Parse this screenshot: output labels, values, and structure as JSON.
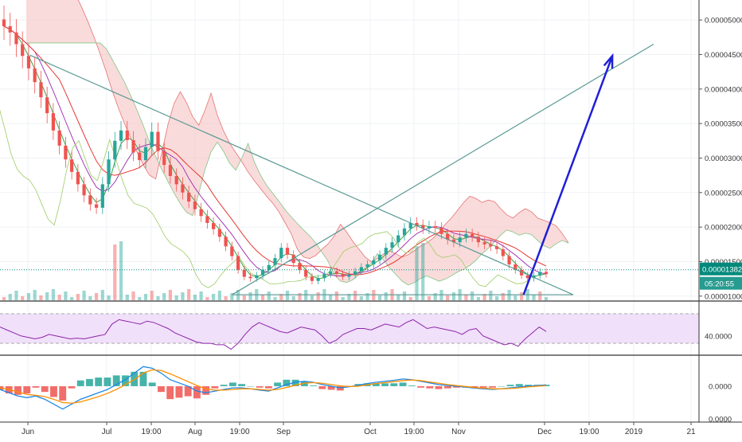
{
  "chart_data": [
    {
      "id": "price",
      "type": "line",
      "y_axis_ticks": [
        "0.00005000",
        "0.00004500",
        "0.00004000",
        "0.00003500",
        "0.00003000",
        "0.00002500",
        "0.00002000",
        "0.00001500",
        "0.00001000"
      ],
      "y_tick_values": [
        5e-05,
        4.5e-05,
        4e-05,
        3.5e-05,
        3e-05,
        2.5e-05,
        2e-05,
        1.5e-05,
        1e-05
      ],
      "ylim": [
        9.4e-06,
        5.29e-05
      ],
      "current_price_label": "0.00001382",
      "current_price": 1.382e-05,
      "countdown_label": "05:20:55",
      "x_axis_ticks": [
        "Jun",
        "Jul",
        "19:00",
        "Aug",
        "19:00",
        "Sep",
        "Oct",
        "19:00",
        "Nov",
        "Dec",
        "19:00",
        "2019",
        "21"
      ],
      "series": [
        {
          "values": [
            4.91e-05,
            4.82e-05,
            4.65e-05,
            4.48e-05,
            4.3e-05,
            4.1e-05,
            3.88e-05,
            3.65e-05,
            3.4e-05,
            3.18e-05,
            2.98e-05,
            2.8e-05,
            2.62e-05,
            2.46e-05,
            2.33e-05,
            2.28e-05,
            2.62e-05,
            2.98e-05,
            3.25e-05,
            3.4e-05,
            3.26e-05,
            3.08e-05,
            2.97e-05,
            3.16e-05,
            3.38e-05,
            3.1e-05,
            2.9e-05,
            2.74e-05,
            2.62e-05,
            2.5e-05,
            2.37e-05,
            2.26e-05,
            2.16e-05,
            2.06e-05,
            1.97e-05,
            1.86e-05,
            1.72e-05,
            1.58e-05,
            1.38e-05,
            1.28e-05,
            1.26e-05,
            1.3e-05,
            1.38e-05,
            1.45e-05,
            1.55e-05,
            1.7e-05,
            1.6e-05,
            1.48e-05,
            1.38e-05,
            1.28e-05,
            1.22e-05,
            1.26e-05,
            1.32e-05,
            1.36e-05,
            1.32e-05,
            1.28e-05,
            1.31e-05,
            1.36e-05,
            1.42e-05,
            1.46e-05,
            1.52e-05,
            1.6e-05,
            1.7e-05,
            1.78e-05,
            1.88e-05,
            1.98e-05,
            2.06e-05,
            2.03e-05,
            1.98e-05,
            2.01e-05,
            1.99e-05,
            1.9e-05,
            1.82e-05,
            1.78e-05,
            1.85e-05,
            1.9e-05,
            1.86e-05,
            1.78e-05,
            1.75e-05,
            1.72e-05,
            1.68e-05,
            1.58e-05,
            1.46e-05,
            1.38e-05,
            1.3e-05,
            1.26e-05,
            1.3e-05,
            1.35e-05,
            1.32e-05
          ]
        }
      ],
      "trend_lines": [
        {
          "from": [
            0.043,
            4.49e-05
          ],
          "to": [
            0.82,
            1.02e-05
          ]
        },
        {
          "from": [
            0.332,
            1.02e-05
          ],
          "to": [
            0.935,
            4.65e-05
          ]
        },
        {
          "from": [
            0.332,
            1.02e-05
          ],
          "to": [
            0.82,
            1.02e-05
          ]
        }
      ],
      "projection_arrow": {
        "from": [
          0.749,
          1.02e-05
        ],
        "to": [
          0.876,
          4.48e-05
        ],
        "color": "#1f1fd6"
      },
      "colors": {
        "candle_up": "#26a69a",
        "candle_down": "#ef5350",
        "cloud_bear": "#f8c8c8",
        "cloud_bull": "#cfe9c9",
        "trend_line": "#5b9a94",
        "price_line": "#00897b"
      }
    },
    {
      "id": "rsi",
      "type": "line",
      "y_axis_ticks": [
        "40.0000"
      ],
      "y_tick_values": [
        40
      ],
      "ylim": [
        15,
        85
      ],
      "band": [
        30,
        70
      ],
      "series": [
        {
          "values": [
            52,
            48,
            44,
            40,
            38,
            36,
            38,
            42,
            40,
            38,
            36,
            37,
            36,
            38,
            40,
            42,
            56,
            62,
            60,
            58,
            56,
            60,
            58,
            54,
            50,
            44,
            40,
            36,
            32,
            30,
            30,
            28,
            28,
            22,
            30,
            42,
            52,
            58,
            54,
            50,
            46,
            44,
            48,
            52,
            50,
            48,
            40,
            30,
            34,
            42,
            46,
            50,
            50,
            48,
            52,
            56,
            54,
            52,
            58,
            62,
            56,
            50,
            52,
            50,
            48,
            46,
            42,
            48,
            50,
            40,
            36,
            32,
            28,
            30,
            26,
            36,
            44,
            52,
            46
          ]
        }
      ],
      "colors": {
        "line": "#8e24aa",
        "band": "#f0e0fa"
      }
    },
    {
      "id": "macd",
      "type": "line",
      "y_axis_ticks": [
        "0.0000",
        "0.0000"
      ],
      "y_tick_values": [
        0,
        -1
      ],
      "ylim": [
        -1.05,
        0.9
      ],
      "series": [
        {
          "values": [
            -0.1,
            -0.2,
            -0.3,
            -0.35,
            -0.3,
            -0.4,
            -0.55,
            -0.7,
            -0.55,
            -0.4,
            -0.3,
            -0.2,
            -0.1,
            0.05,
            0.2,
            0.4,
            0.6,
            0.55,
            0.4,
            0.2,
            0.1,
            0.0,
            -0.15,
            -0.2,
            -0.15,
            -0.1,
            -0.05,
            -0.05,
            -0.08,
            -0.12,
            -0.15,
            -0.05,
            0.05,
            0.12,
            0.15,
            0.12,
            0.05,
            0.0,
            -0.05,
            -0.02,
            0.03,
            0.08,
            0.12,
            0.15,
            0.18,
            0.22,
            0.2,
            0.15,
            0.1,
            0.05,
            0.02,
            0.0,
            -0.03,
            -0.06,
            -0.08,
            -0.1,
            -0.08,
            -0.05,
            -0.02,
            0.0,
            0.02,
            0.04
          ]
        },
        {
          "values": [
            -0.05,
            -0.1,
            -0.18,
            -0.25,
            -0.28,
            -0.32,
            -0.4,
            -0.5,
            -0.52,
            -0.48,
            -0.4,
            -0.32,
            -0.22,
            -0.1,
            0.05,
            0.2,
            0.4,
            0.5,
            0.48,
            0.38,
            0.26,
            0.14,
            0.02,
            -0.08,
            -0.12,
            -0.12,
            -0.1,
            -0.08,
            -0.08,
            -0.1,
            -0.12,
            -0.1,
            -0.04,
            0.03,
            0.09,
            0.11,
            0.09,
            0.05,
            0.01,
            -0.01,
            0.0,
            0.04,
            0.08,
            0.11,
            0.14,
            0.17,
            0.19,
            0.17,
            0.13,
            0.09,
            0.05,
            0.02,
            -0.01,
            -0.04,
            -0.06,
            -0.08,
            -0.08,
            -0.07,
            -0.05,
            -0.02,
            0.0,
            0.02
          ]
        }
      ],
      "colors": {
        "macd": "#1e88e5",
        "signal": "#ff8f00",
        "hist_up": "#26a69a",
        "hist_down": "#ef5350"
      }
    }
  ]
}
